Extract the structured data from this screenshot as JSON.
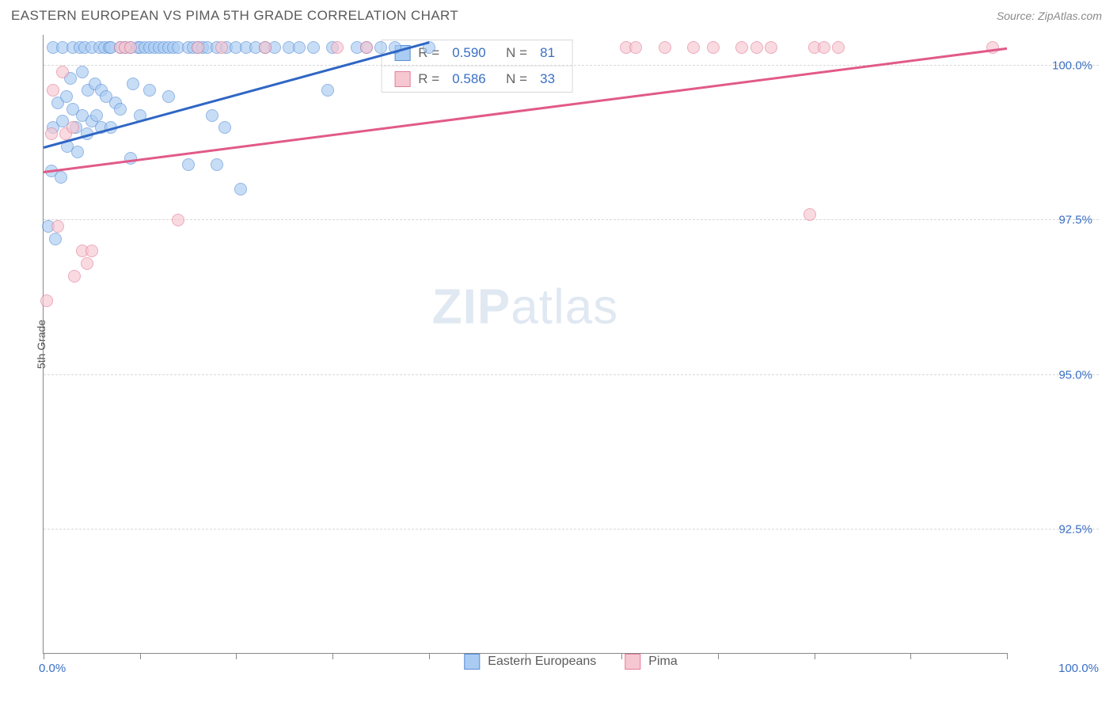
{
  "header": {
    "title": "EASTERN EUROPEAN VS PIMA 5TH GRADE CORRELATION CHART",
    "source": "Source: ZipAtlas.com"
  },
  "axes": {
    "y_label": "5th Grade",
    "x_min": 0.0,
    "x_max": 100.0,
    "y_min": 90.5,
    "y_max": 100.5,
    "y_ticks": [
      {
        "v": 100.0,
        "label": "100.0%"
      },
      {
        "v": 97.5,
        "label": "97.5%"
      },
      {
        "v": 95.0,
        "label": "95.0%"
      },
      {
        "v": 92.5,
        "label": "92.5%"
      }
    ],
    "x_ticks": [
      0,
      10,
      20,
      30,
      40,
      50,
      60,
      70,
      80,
      90,
      100
    ],
    "x_left_label": "0.0%",
    "x_right_label": "100.0%",
    "grid_color": "#d8d8d8",
    "axis_color": "#888888"
  },
  "series": [
    {
      "name": "Eastern Europeans",
      "fill": "#aaccf2",
      "stroke": "#5a8fd6",
      "line_color": "#2f66c4",
      "R": "0.590",
      "N": "81",
      "trend": {
        "x1": 0,
        "y1": 98.7,
        "x2": 40,
        "y2": 100.4
      },
      "points": [
        [
          0.5,
          97.4
        ],
        [
          0.8,
          98.3
        ],
        [
          1.0,
          99.0
        ],
        [
          1.0,
          100.3
        ],
        [
          1.2,
          97.2
        ],
        [
          1.5,
          99.4
        ],
        [
          1.8,
          98.2
        ],
        [
          2.0,
          99.1
        ],
        [
          2.0,
          100.3
        ],
        [
          2.4,
          99.5
        ],
        [
          2.5,
          98.7
        ],
        [
          2.8,
          99.8
        ],
        [
          3.0,
          99.3
        ],
        [
          3.0,
          100.3
        ],
        [
          3.4,
          99.0
        ],
        [
          3.5,
          98.6
        ],
        [
          3.8,
          100.3
        ],
        [
          4.0,
          99.2
        ],
        [
          4.0,
          99.9
        ],
        [
          4.3,
          100.3
        ],
        [
          4.5,
          98.9
        ],
        [
          4.6,
          99.6
        ],
        [
          5.0,
          99.1
        ],
        [
          5.0,
          100.3
        ],
        [
          5.3,
          99.7
        ],
        [
          5.5,
          99.2
        ],
        [
          5.8,
          100.3
        ],
        [
          6.0,
          99.0
        ],
        [
          6.0,
          99.6
        ],
        [
          6.3,
          100.3
        ],
        [
          6.5,
          99.5
        ],
        [
          6.8,
          100.3
        ],
        [
          7.0,
          99.0
        ],
        [
          7.0,
          100.3
        ],
        [
          7.5,
          99.4
        ],
        [
          8.0,
          100.3
        ],
        [
          8.0,
          99.3
        ],
        [
          8.5,
          100.3
        ],
        [
          9.0,
          98.5
        ],
        [
          9.0,
          100.3
        ],
        [
          9.3,
          99.7
        ],
        [
          9.8,
          100.3
        ],
        [
          10.0,
          99.2
        ],
        [
          10.0,
          100.3
        ],
        [
          10.5,
          100.3
        ],
        [
          11.0,
          99.6
        ],
        [
          11.0,
          100.3
        ],
        [
          11.5,
          100.3
        ],
        [
          12.0,
          100.3
        ],
        [
          12.5,
          100.3
        ],
        [
          13.0,
          99.5
        ],
        [
          13.0,
          100.3
        ],
        [
          13.5,
          100.3
        ],
        [
          14.0,
          100.3
        ],
        [
          15.0,
          98.4
        ],
        [
          15.0,
          100.3
        ],
        [
          15.5,
          100.3
        ],
        [
          16.0,
          100.3
        ],
        [
          16.5,
          100.3
        ],
        [
          17.0,
          100.3
        ],
        [
          17.5,
          99.2
        ],
        [
          18.0,
          98.4
        ],
        [
          18.0,
          100.3
        ],
        [
          18.8,
          99.0
        ],
        [
          19.0,
          100.3
        ],
        [
          20.0,
          100.3
        ],
        [
          20.5,
          98.0
        ],
        [
          21.0,
          100.3
        ],
        [
          22.0,
          100.3
        ],
        [
          23.0,
          100.3
        ],
        [
          24.0,
          100.3
        ],
        [
          25.5,
          100.3
        ],
        [
          26.5,
          100.3
        ],
        [
          28.0,
          100.3
        ],
        [
          29.5,
          99.6
        ],
        [
          30.0,
          100.3
        ],
        [
          32.5,
          100.3
        ],
        [
          33.5,
          100.3
        ],
        [
          35.0,
          100.3
        ],
        [
          36.5,
          100.3
        ],
        [
          40.0,
          100.3
        ]
      ]
    },
    {
      "name": "Pima",
      "fill": "#f6c7d1",
      "stroke": "#e27f9a",
      "line_color": "#e15a88",
      "R": "0.586",
      "N": "33",
      "trend": {
        "x1": 0,
        "y1": 98.3,
        "x2": 100,
        "y2": 100.3
      },
      "points": [
        [
          0.3,
          96.2
        ],
        [
          0.8,
          98.9
        ],
        [
          1.0,
          99.6
        ],
        [
          1.5,
          97.4
        ],
        [
          2.0,
          99.9
        ],
        [
          2.3,
          98.9
        ],
        [
          3.0,
          99.0
        ],
        [
          3.2,
          96.6
        ],
        [
          4.0,
          97.0
        ],
        [
          4.5,
          96.8
        ],
        [
          5.0,
          97.0
        ],
        [
          8.0,
          100.3
        ],
        [
          8.5,
          100.3
        ],
        [
          9.0,
          100.3
        ],
        [
          14.0,
          97.5
        ],
        [
          16.0,
          100.3
        ],
        [
          18.5,
          100.3
        ],
        [
          23.0,
          100.3
        ],
        [
          30.5,
          100.3
        ],
        [
          33.5,
          100.3
        ],
        [
          60.5,
          100.3
        ],
        [
          61.5,
          100.3
        ],
        [
          64.5,
          100.3
        ],
        [
          67.5,
          100.3
        ],
        [
          69.5,
          100.3
        ],
        [
          72.5,
          100.3
        ],
        [
          74.0,
          100.3
        ],
        [
          75.5,
          100.3
        ],
        [
          79.5,
          97.6
        ],
        [
          80.0,
          100.3
        ],
        [
          81.0,
          100.3
        ],
        [
          82.5,
          100.3
        ],
        [
          98.5,
          100.3
        ]
      ]
    }
  ],
  "legend_bottom": [
    {
      "name": "Eastern Europeans",
      "fill": "#aaccf2",
      "stroke": "#5a8fd6"
    },
    {
      "name": "Pima",
      "fill": "#f6c7d1",
      "stroke": "#e27f9a"
    }
  ],
  "watermark": {
    "zip": "ZIP",
    "atlas": "atlas"
  },
  "style": {
    "point_radius": 8,
    "point_opacity": 0.65,
    "trend_width": 2.5,
    "title_color": "#5a5a5a",
    "source_color": "#8a8a8a",
    "tick_label_color": "#3a6fc4",
    "background": "#ffffff"
  }
}
